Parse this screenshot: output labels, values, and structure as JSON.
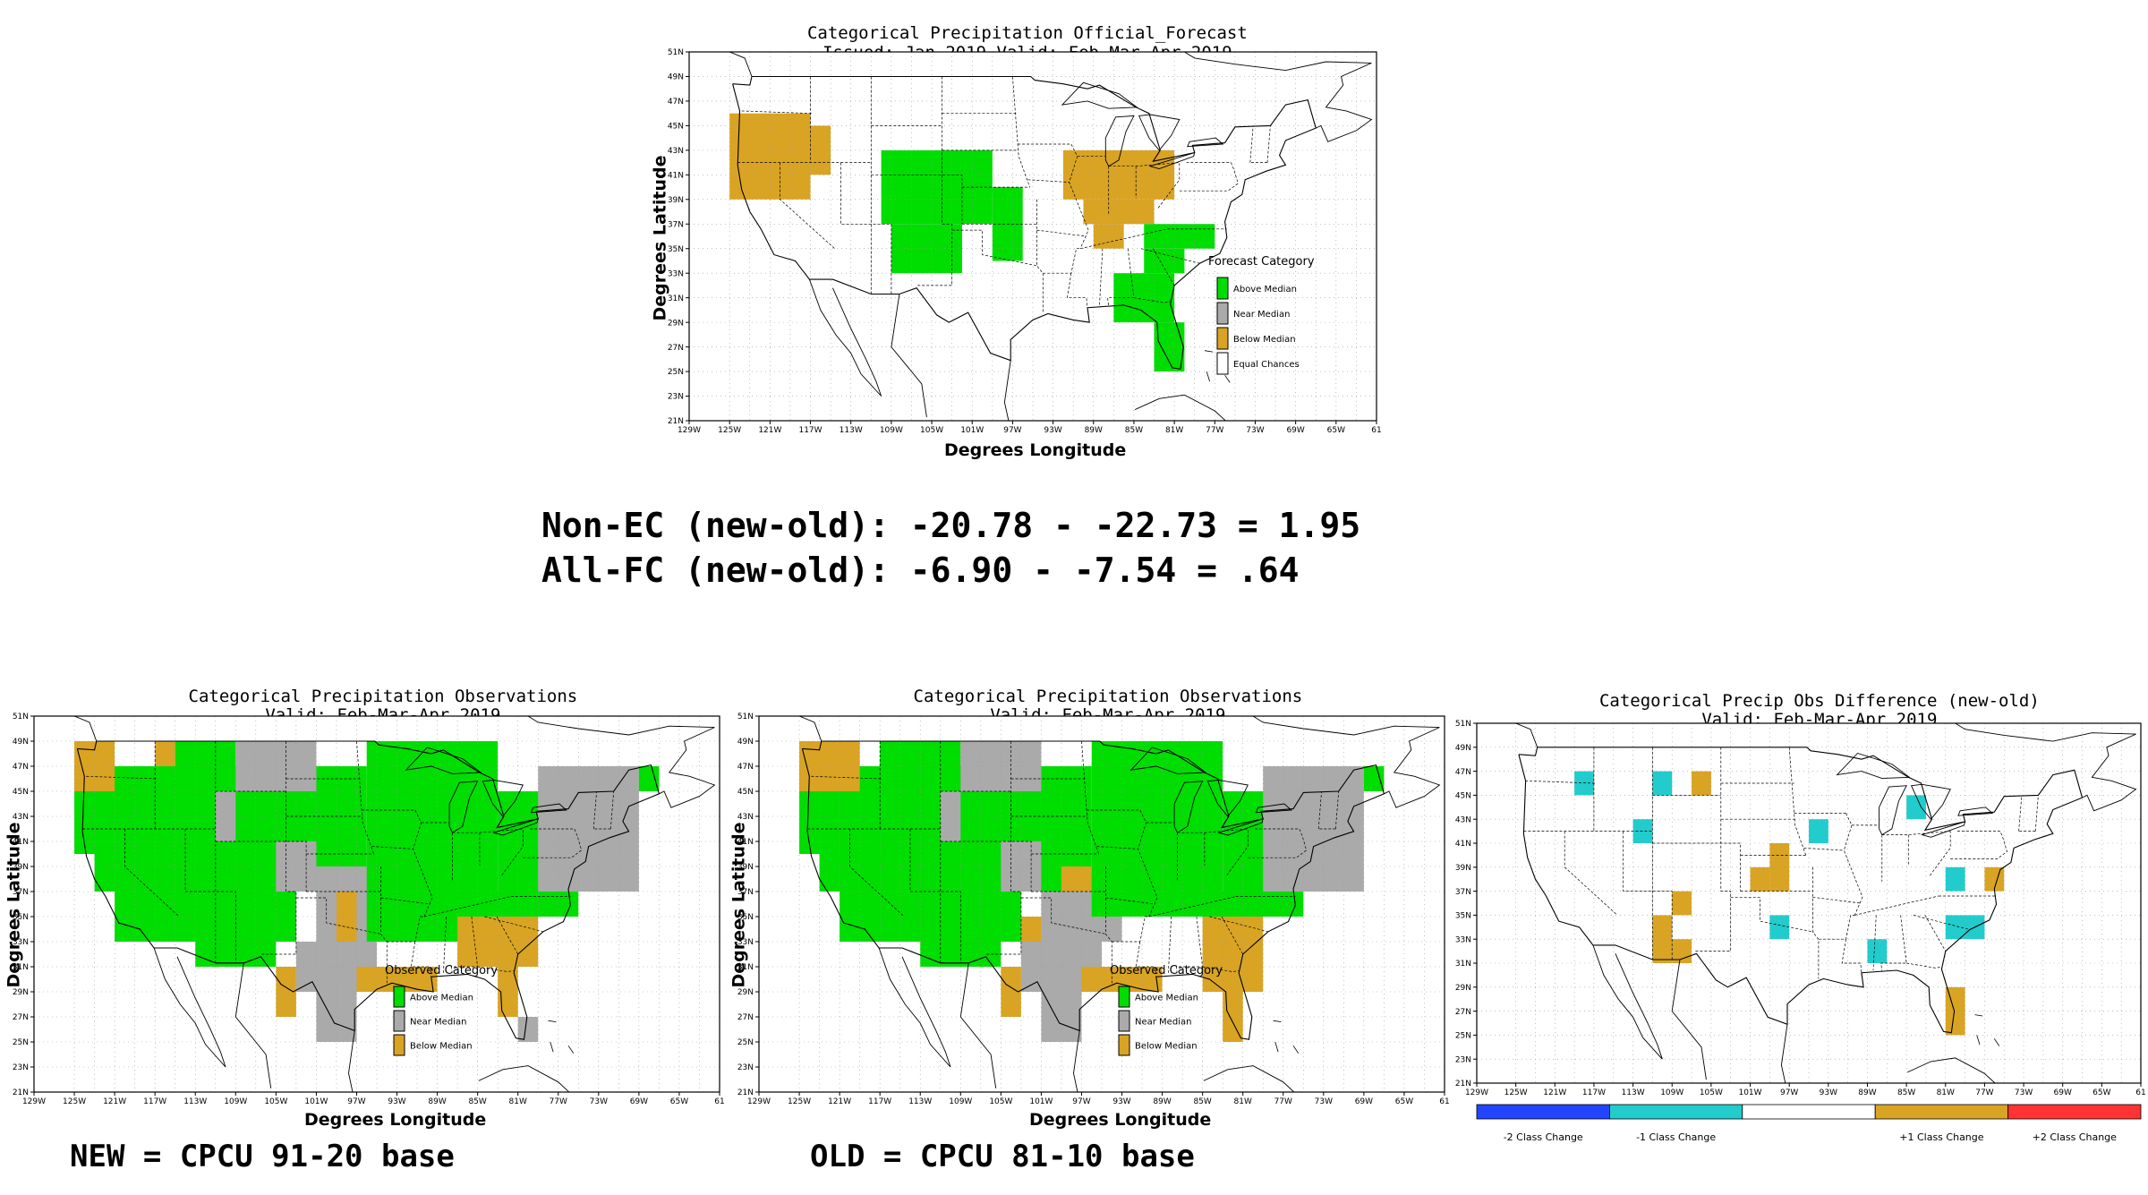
{
  "colors": {
    "above": "#00dd00",
    "near": "#aaaaaa",
    "below": "#d9a423",
    "ec": "#ffffff",
    "minus2": "#2244ff",
    "minus1": "#22cccc",
    "zero": "#ffffff",
    "plus1": "#d9a423",
    "plus2": "#ff3333"
  },
  "ticks": {
    "lon": [
      "129W",
      "125W",
      "121W",
      "117W",
      "113W",
      "109W",
      "105W",
      "101W",
      "97W",
      "93W",
      "89W",
      "85W",
      "81W",
      "77W",
      "73W",
      "69W",
      "65W",
      "61"
    ],
    "lat": [
      "51N",
      "49N",
      "47N",
      "45N",
      "43N",
      "41N",
      "39N",
      "37N",
      "35N",
      "33N",
      "31N",
      "29N",
      "27N",
      "25N",
      "23N",
      "21N"
    ]
  },
  "summary": {
    "line1": "Non-EC (new-old): -20.78 - -22.73 = 1.95",
    "line2": "All-FC (new-old): -6.90 - -7.54 = .64"
  },
  "captions": {
    "new": "NEW = CPCU 91-20 base",
    "old": "OLD = CPCU 81-10 base"
  },
  "chart_data": [
    {
      "type": "heatmap",
      "id": "forecast",
      "title": "Categorical Precipitation Official_Forecast",
      "subtitle": "Issued: Jan 2019 Valid: Feb-Mar-Apr 2019",
      "xlabel": "Degrees Longitude",
      "ylabel": "Degrees Latitude",
      "xlim": [
        -129,
        -61
      ],
      "ylim": [
        21,
        51
      ],
      "legend": {
        "title": "Forecast Category",
        "position": "right",
        "entries": [
          {
            "key": "above",
            "label": "Above Median"
          },
          {
            "key": "near",
            "label": "Near Median"
          },
          {
            "key": "below",
            "label": "Below Median"
          },
          {
            "key": "ec",
            "label": "Equal Chances"
          }
        ]
      },
      "cells": [
        {
          "cat": "below",
          "lon": [
            -125,
            -117
          ],
          "lat": [
            39,
            46
          ]
        },
        {
          "cat": "below",
          "lon": [
            -117,
            -115
          ],
          "lat": [
            41,
            45
          ]
        },
        {
          "cat": "above",
          "lon": [
            -110,
            -99
          ],
          "lat": [
            37,
            43
          ]
        },
        {
          "cat": "above",
          "lon": [
            -109,
            -102
          ],
          "lat": [
            33,
            37
          ]
        },
        {
          "cat": "above",
          "lon": [
            -99,
            -96
          ],
          "lat": [
            34,
            40
          ]
        },
        {
          "cat": "below",
          "lon": [
            -92,
            -81
          ],
          "lat": [
            39,
            43
          ]
        },
        {
          "cat": "below",
          "lon": [
            -90,
            -83
          ],
          "lat": [
            37,
            39
          ]
        },
        {
          "cat": "below",
          "lon": [
            -89,
            -86
          ],
          "lat": [
            35,
            37
          ]
        },
        {
          "cat": "above",
          "lon": [
            -84,
            -77
          ],
          "lat": [
            35,
            37
          ]
        },
        {
          "cat": "above",
          "lon": [
            -84,
            -80
          ],
          "lat": [
            33,
            35
          ]
        },
        {
          "cat": "above",
          "lon": [
            -87,
            -81
          ],
          "lat": [
            29,
            33
          ]
        },
        {
          "cat": "above",
          "lon": [
            -83,
            -80
          ],
          "lat": [
            25,
            29
          ]
        }
      ]
    },
    {
      "type": "heatmap",
      "id": "obs_new",
      "title": "Categorical Precipitation Observations",
      "subtitle": "Valid: Feb-Mar-Apr 2019",
      "xlabel": "Degrees Longitude",
      "ylabel": "Degrees Latitude",
      "xlim": [
        -129,
        -61
      ],
      "ylim": [
        21,
        51
      ],
      "legend": {
        "title": "Observed Category",
        "position": "right",
        "entries": [
          {
            "key": "above",
            "label": "Above Median"
          },
          {
            "key": "near",
            "label": "Near Median"
          },
          {
            "key": "below",
            "label": "Below Median"
          }
        ]
      },
      "cells": [
        {
          "cat": "above",
          "lon": [
            -125,
            -96
          ],
          "lat": [
            40,
            47
          ]
        },
        {
          "cat": "above",
          "lon": [
            -123,
            -96
          ],
          "lat": [
            37,
            40
          ]
        },
        {
          "cat": "above",
          "lon": [
            -121,
            -103
          ],
          "lat": [
            33,
            37
          ]
        },
        {
          "cat": "above",
          "lon": [
            -113,
            -105
          ],
          "lat": [
            31,
            33
          ]
        },
        {
          "cat": "below",
          "lon": [
            -125,
            -121
          ],
          "lat": [
            45,
            49
          ]
        },
        {
          "cat": "below",
          "lon": [
            -117,
            -115
          ],
          "lat": [
            47,
            49
          ]
        },
        {
          "cat": "above",
          "lon": [
            -115,
            -109
          ],
          "lat": [
            47,
            49
          ]
        },
        {
          "cat": "near",
          "lon": [
            -109,
            -101
          ],
          "lat": [
            45,
            49
          ]
        },
        {
          "cat": "near",
          "lon": [
            -111,
            -109
          ],
          "lat": [
            41,
            45
          ]
        },
        {
          "cat": "near",
          "lon": [
            -105,
            -101
          ],
          "lat": [
            37,
            41
          ]
        },
        {
          "cat": "near",
          "lon": [
            -101,
            -93
          ],
          "lat": [
            33,
            39
          ]
        },
        {
          "cat": "near",
          "lon": [
            -103,
            -95
          ],
          "lat": [
            29,
            33
          ]
        },
        {
          "cat": "below",
          "lon": [
            -105,
            -103
          ],
          "lat": [
            27,
            31
          ]
        },
        {
          "cat": "below",
          "lon": [
            -99,
            -97
          ],
          "lat": [
            33,
            37
          ]
        },
        {
          "cat": "near",
          "lon": [
            -101,
            -97
          ],
          "lat": [
            25,
            29
          ]
        },
        {
          "cat": "below",
          "lon": [
            -97,
            -89
          ],
          "lat": [
            29,
            31
          ]
        },
        {
          "cat": "above",
          "lon": [
            -96,
            -83
          ],
          "lat": [
            33,
            49
          ]
        },
        {
          "cat": "above",
          "lon": [
            -83,
            -77
          ],
          "lat": [
            37,
            45
          ]
        },
        {
          "cat": "above",
          "lon": [
            -89,
            -75
          ],
          "lat": [
            35,
            37
          ]
        },
        {
          "cat": "near",
          "lon": [
            -79,
            -69
          ],
          "lat": [
            37,
            47
          ]
        },
        {
          "cat": "above",
          "lon": [
            -69,
            -67
          ],
          "lat": [
            45,
            47
          ]
        },
        {
          "cat": "below",
          "lon": [
            -87,
            -79
          ],
          "lat": [
            31,
            35
          ]
        },
        {
          "cat": "below",
          "lon": [
            -83,
            -81
          ],
          "lat": [
            27,
            31
          ]
        },
        {
          "cat": "near",
          "lon": [
            -81,
            -79
          ],
          "lat": [
            25,
            27
          ]
        }
      ]
    },
    {
      "type": "heatmap",
      "id": "obs_old",
      "title": "Categorical Precipitation Observations",
      "subtitle": "Valid: Feb-Mar-Apr 2019",
      "xlabel": "Degrees Longitude",
      "ylabel": "Degrees Latitude",
      "xlim": [
        -129,
        -61
      ],
      "ylim": [
        21,
        51
      ],
      "legend": {
        "title": "Observed Category",
        "position": "right",
        "entries": [
          {
            "key": "above",
            "label": "Above Median"
          },
          {
            "key": "near",
            "label": "Near Median"
          },
          {
            "key": "below",
            "label": "Below Median"
          }
        ]
      },
      "cells": [
        {
          "cat": "above",
          "lon": [
            -125,
            -96
          ],
          "lat": [
            40,
            47
          ]
        },
        {
          "cat": "above",
          "lon": [
            -123,
            -96
          ],
          "lat": [
            37,
            40
          ]
        },
        {
          "cat": "above",
          "lon": [
            -121,
            -103
          ],
          "lat": [
            33,
            37
          ]
        },
        {
          "cat": "above",
          "lon": [
            -113,
            -105
          ],
          "lat": [
            31,
            33
          ]
        },
        {
          "cat": "below",
          "lon": [
            -125,
            -119
          ],
          "lat": [
            45,
            49
          ]
        },
        {
          "cat": "above",
          "lon": [
            -117,
            -109
          ],
          "lat": [
            47,
            49
          ]
        },
        {
          "cat": "near",
          "lon": [
            -109,
            -101
          ],
          "lat": [
            45,
            49
          ]
        },
        {
          "cat": "near",
          "lon": [
            -111,
            -109
          ],
          "lat": [
            41,
            45
          ]
        },
        {
          "cat": "near",
          "lon": [
            -105,
            -101
          ],
          "lat": [
            37,
            41
          ]
        },
        {
          "cat": "below",
          "lon": [
            -99,
            -95
          ],
          "lat": [
            37,
            39
          ]
        },
        {
          "cat": "near",
          "lon": [
            -101,
            -93
          ],
          "lat": [
            33,
            37
          ]
        },
        {
          "cat": "near",
          "lon": [
            -103,
            -95
          ],
          "lat": [
            29,
            33
          ]
        },
        {
          "cat": "below",
          "lon": [
            -103,
            -101
          ],
          "lat": [
            33,
            35
          ]
        },
        {
          "cat": "below",
          "lon": [
            -105,
            -103
          ],
          "lat": [
            27,
            31
          ]
        },
        {
          "cat": "near",
          "lon": [
            -101,
            -97
          ],
          "lat": [
            25,
            29
          ]
        },
        {
          "cat": "below",
          "lon": [
            -97,
            -89
          ],
          "lat": [
            29,
            31
          ]
        },
        {
          "cat": "above",
          "lon": [
            -96,
            -83
          ],
          "lat": [
            35,
            49
          ]
        },
        {
          "cat": "above",
          "lon": [
            -83,
            -77
          ],
          "lat": [
            37,
            45
          ]
        },
        {
          "cat": "above",
          "lon": [
            -89,
            -75
          ],
          "lat": [
            35,
            37
          ]
        },
        {
          "cat": "near",
          "lon": [
            -79,
            -69
          ],
          "lat": [
            37,
            47
          ]
        },
        {
          "cat": "above",
          "lon": [
            -69,
            -67
          ],
          "lat": [
            45,
            47
          ]
        },
        {
          "cat": "below",
          "lon": [
            -85,
            -79
          ],
          "lat": [
            29,
            35
          ]
        },
        {
          "cat": "below",
          "lon": [
            -83,
            -81
          ],
          "lat": [
            25,
            29
          ]
        }
      ]
    },
    {
      "type": "heatmap",
      "id": "difference",
      "title": "Categorical Precip Obs Difference (new-old)",
      "subtitle": "Valid: Feb-Mar-Apr 2019",
      "xlim": [
        -129,
        -61
      ],
      "ylim": [
        21,
        51
      ],
      "colorbar": {
        "position": "bottom",
        "entries": [
          {
            "key": "minus2",
            "label": "-2 Class Change"
          },
          {
            "key": "minus1",
            "label": "-1 Class Change"
          },
          {
            "key": "zero",
            "label": ""
          },
          {
            "key": "plus1",
            "label": "+1 Class Change"
          },
          {
            "key": "plus2",
            "label": "+2 Class Change"
          }
        ]
      },
      "cells": [
        {
          "cat": "minus1",
          "lon": [
            -119,
            -117
          ],
          "lat": [
            45,
            47
          ]
        },
        {
          "cat": "minus1",
          "lon": [
            -111,
            -109
          ],
          "lat": [
            45,
            47
          ]
        },
        {
          "cat": "plus1",
          "lon": [
            -107,
            -105
          ],
          "lat": [
            45,
            47
          ]
        },
        {
          "cat": "minus1",
          "lon": [
            -113,
            -111
          ],
          "lat": [
            41,
            43
          ]
        },
        {
          "cat": "minus1",
          "lon": [
            -95,
            -93
          ],
          "lat": [
            41,
            43
          ]
        },
        {
          "cat": "minus1",
          "lon": [
            -85,
            -83
          ],
          "lat": [
            43,
            45
          ]
        },
        {
          "cat": "plus1",
          "lon": [
            -99,
            -97
          ],
          "lat": [
            37,
            41
          ]
        },
        {
          "cat": "plus1",
          "lon": [
            -101,
            -99
          ],
          "lat": [
            37,
            39
          ]
        },
        {
          "cat": "minus1",
          "lon": [
            -81,
            -79
          ],
          "lat": [
            37,
            39
          ]
        },
        {
          "cat": "plus1",
          "lon": [
            -77,
            -75
          ],
          "lat": [
            37,
            39
          ]
        },
        {
          "cat": "plus1",
          "lon": [
            -109,
            -107
          ],
          "lat": [
            35,
            37
          ]
        },
        {
          "cat": "plus1",
          "lon": [
            -111,
            -109
          ],
          "lat": [
            31,
            35
          ]
        },
        {
          "cat": "plus1",
          "lon": [
            -109,
            -107
          ],
          "lat": [
            31,
            33
          ]
        },
        {
          "cat": "minus1",
          "lon": [
            -99,
            -97
          ],
          "lat": [
            33,
            35
          ]
        },
        {
          "cat": "minus1",
          "lon": [
            -89,
            -87
          ],
          "lat": [
            31,
            33
          ]
        },
        {
          "cat": "minus1",
          "lon": [
            -81,
            -77
          ],
          "lat": [
            33,
            35
          ]
        },
        {
          "cat": "plus1",
          "lon": [
            -81,
            -79
          ],
          "lat": [
            25,
            29
          ]
        }
      ]
    }
  ]
}
